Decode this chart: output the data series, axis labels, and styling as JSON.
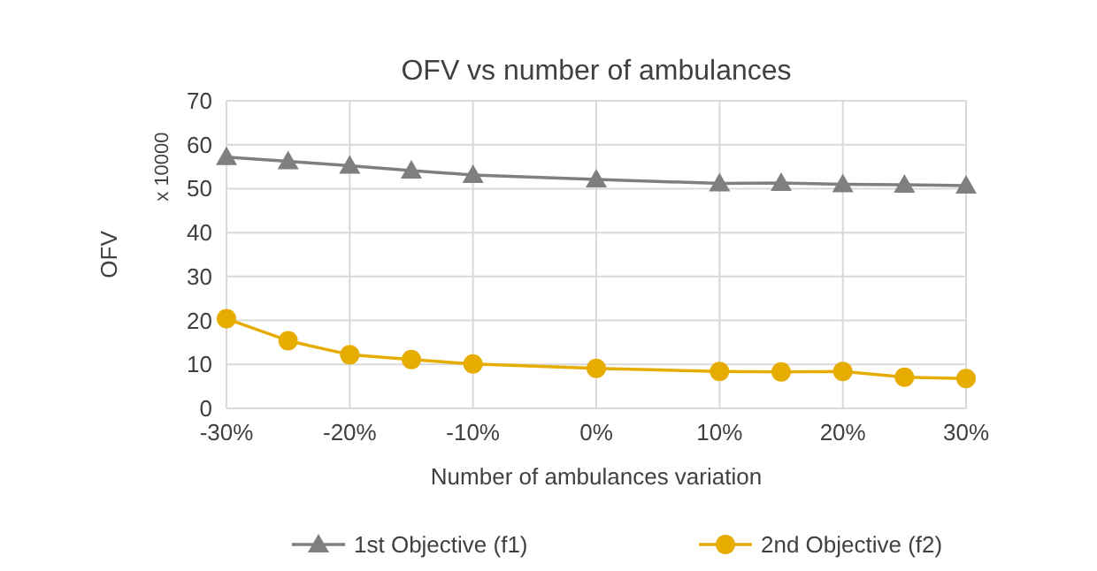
{
  "chart_data": {
    "type": "line",
    "title": "OFV vs number of ambulances",
    "xlabel": "Number of ambulances variation",
    "ylabel": "OFV",
    "annotations": [
      "x 10000"
    ],
    "x": [
      -30,
      -25,
      -20,
      -15,
      -10,
      0,
      10,
      15,
      20,
      25,
      30
    ],
    "xlim": [
      -30,
      30
    ],
    "xticks": [
      {
        "value": -30,
        "label": "-30%"
      },
      {
        "value": -20,
        "label": "-20%"
      },
      {
        "value": -10,
        "label": "-10%"
      },
      {
        "value": 0,
        "label": "0%"
      },
      {
        "value": 10,
        "label": "10%"
      },
      {
        "value": 20,
        "label": "20%"
      },
      {
        "value": 30,
        "label": "30%"
      }
    ],
    "ylim": [
      0,
      70
    ],
    "yticks": [
      0,
      10,
      20,
      30,
      40,
      50,
      60,
      70
    ],
    "grid": true,
    "legend": "bottom",
    "line_style": "solid",
    "series": [
      {
        "name": "1st Objective (f1)",
        "color": "#7f7f7f",
        "marker": "triangle",
        "values": [
          57.2,
          56.2,
          55.2,
          54.1,
          53.1,
          52.1,
          51.2,
          51.3,
          51.0,
          50.9,
          50.7
        ]
      },
      {
        "name": "2nd Objective (f2)",
        "color": "#e6ac00",
        "marker": "circle",
        "values": [
          20.4,
          15.4,
          12.2,
          11.1,
          10.1,
          9.1,
          8.4,
          8.3,
          8.4,
          7.1,
          6.8
        ]
      }
    ]
  }
}
